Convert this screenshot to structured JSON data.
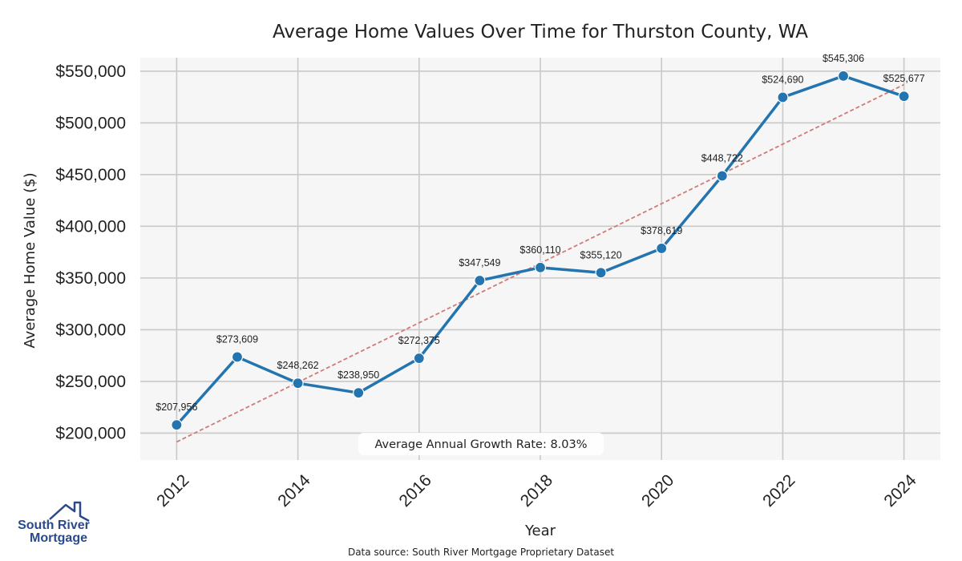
{
  "chart_data": {
    "type": "line",
    "title": "Average Home Values Over Time for Thurston County, WA",
    "xlabel": "Year",
    "ylabel": "Average Home Value ($)",
    "x": [
      2012,
      2013,
      2014,
      2015,
      2016,
      2017,
      2018,
      2019,
      2020,
      2021,
      2022,
      2023,
      2024
    ],
    "values": [
      207956,
      273609,
      248262,
      238950,
      272375,
      347549,
      360110,
      355120,
      378619,
      448722,
      524690,
      545306,
      525677
    ],
    "data_labels": [
      "$207,956",
      "$273,609",
      "$248,262",
      "$238,950",
      "$272,375",
      "$347,549",
      "$360,110",
      "$355,120",
      "$378,619",
      "$448,722",
      "$524,690",
      "$545,306",
      "$525,677"
    ],
    "xlim": [
      2011.4,
      2024.6
    ],
    "ylim": [
      174000,
      563000
    ],
    "x_ticks": [
      2012,
      2014,
      2016,
      2018,
      2020,
      2022,
      2024
    ],
    "x_tick_labels": [
      "2012",
      "2014",
      "2016",
      "2018",
      "2020",
      "2022",
      "2024"
    ],
    "y_ticks": [
      200000,
      250000,
      300000,
      350000,
      400000,
      450000,
      500000,
      550000
    ],
    "y_tick_labels": [
      "$200,000",
      "$250,000",
      "$300,000",
      "$350,000",
      "$400,000",
      "$450,000",
      "$500,000",
      "$550,000"
    ],
    "trend_line": {
      "start": [
        2012,
        191500
      ],
      "end": [
        2024,
        537000
      ]
    },
    "annotation": "Average Annual Growth Rate: 8.03%",
    "grid": true,
    "colors": {
      "line": "#2474b0",
      "marker": "#2474b0",
      "trend": "#d07a7a",
      "plot_bg": "#f6f6f6",
      "grid": "#c9c9c9"
    }
  },
  "source_note": "Data source: South River Mortgage Proprietary Dataset",
  "logo": {
    "line1": "South River",
    "line2": "Mortgage",
    "icon": "house-icon",
    "color": "#2a4a8c"
  }
}
